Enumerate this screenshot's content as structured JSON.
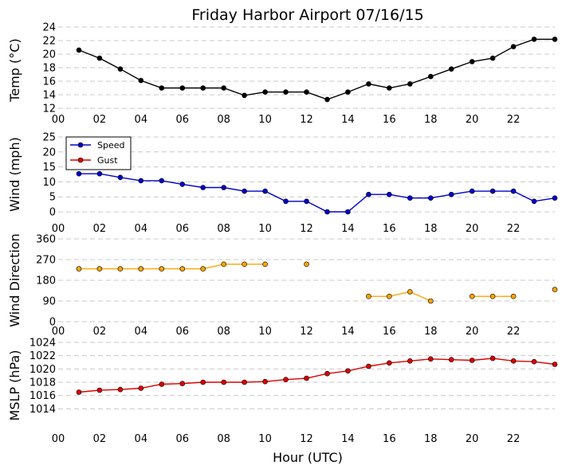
{
  "chart_data": {
    "type": "line",
    "title": "Friday Harbor Airport 07/16/15",
    "xlabel": "Hour (UTC)",
    "x_ticks": [
      "00",
      "02",
      "04",
      "06",
      "08",
      "10",
      "12",
      "14",
      "16",
      "18",
      "20",
      "22"
    ],
    "x": [
      1,
      2,
      3,
      4,
      5,
      6,
      7,
      8,
      9,
      10,
      11,
      12,
      13,
      14,
      15,
      16,
      17,
      18,
      19,
      20,
      21,
      22,
      23,
      24
    ],
    "grid": true,
    "panels": [
      {
        "ylabel": "Temp (°C)",
        "ylim": [
          12,
          24
        ],
        "y_ticks": [
          "12",
          "14",
          "16",
          "18",
          "20",
          "22",
          "24"
        ],
        "series": [
          {
            "color": "#000000",
            "values": [
              20.6,
              19.4,
              17.8,
              16.1,
              15.0,
              15.0,
              15.0,
              15.0,
              13.9,
              14.4,
              14.4,
              14.4,
              13.3,
              14.4,
              15.6,
              15.0,
              15.6,
              16.7,
              17.8,
              18.9,
              19.4,
              21.1,
              22.2,
              22.2
            ]
          }
        ]
      },
      {
        "ylabel": "Wind (mph)",
        "ylim": [
          0,
          25
        ],
        "y_ticks": [
          "0",
          "5",
          "10",
          "15",
          "20",
          "25"
        ],
        "legend_position": "upper-left",
        "series": [
          {
            "name": "Speed",
            "color": "#0000cc",
            "values": [
              12.7,
              12.7,
              11.5,
              10.4,
              10.4,
              9.2,
              8.1,
              8.1,
              6.9,
              6.9,
              3.5,
              3.5,
              0,
              0,
              5.8,
              5.8,
              4.6,
              4.6,
              5.8,
              6.9,
              6.9,
              6.9,
              3.5,
              4.6
            ]
          },
          {
            "name": "Gust",
            "color": "#dd0000",
            "values": []
          }
        ]
      },
      {
        "ylabel": "Wind Direction",
        "ylim": [
          0,
          360
        ],
        "y_ticks": [
          "0",
          "90",
          "180",
          "270",
          "360"
        ],
        "series": [
          {
            "color": "#ffa500",
            "values": [
              230,
              230,
              230,
              230,
              230,
              230,
              230,
              250,
              250,
              250,
              null,
              250,
              null,
              null,
              110,
              110,
              130,
              90,
              null,
              110,
              110,
              110,
              null,
              140
            ]
          }
        ]
      },
      {
        "ylabel": "MSLP (hPa)",
        "ylim": [
          1012,
          1024
        ],
        "y_ticks": [
          "1014",
          "1016",
          "1018",
          "1020",
          "1022",
          "1024"
        ],
        "series": [
          {
            "color": "#dd0000",
            "values": [
              1016.5,
              1016.8,
              1016.9,
              1017.1,
              1017.7,
              1017.8,
              1018.0,
              1018.0,
              1018.0,
              1018.1,
              1018.4,
              1018.6,
              1019.3,
              1019.7,
              1020.4,
              1020.9,
              1021.2,
              1021.5,
              1021.4,
              1021.3,
              1021.6,
              1021.2,
              1021.1,
              1020.7
            ]
          }
        ]
      }
    ]
  }
}
